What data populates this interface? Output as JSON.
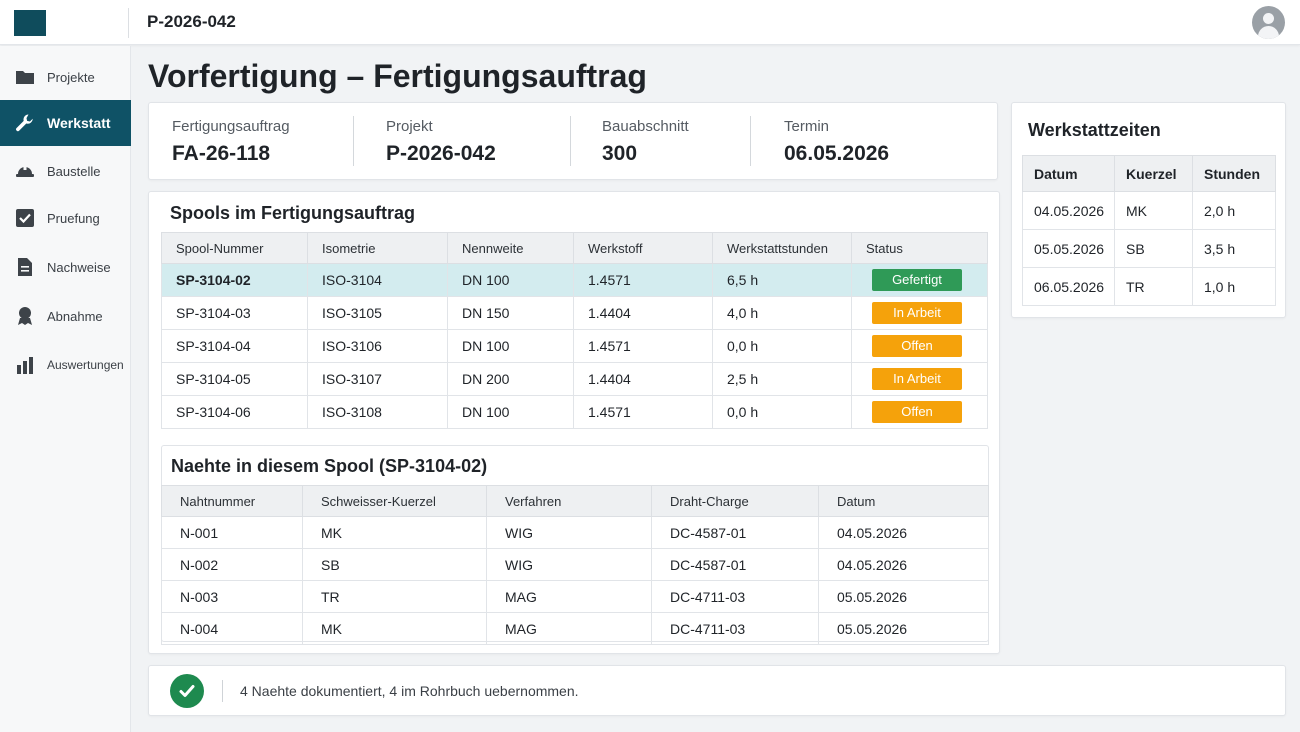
{
  "header": {
    "project_id": "P-2026-042"
  },
  "sidebar": {
    "items": [
      {
        "label": "Projekte",
        "icon": "folder-icon"
      },
      {
        "label": "Werkstatt",
        "icon": "wrench-icon",
        "active": true
      },
      {
        "label": "Baustelle",
        "icon": "hardhat-icon"
      },
      {
        "label": "Pruefung",
        "icon": "checkbox-icon"
      },
      {
        "label": "Nachweise",
        "icon": "document-icon"
      },
      {
        "label": "Abnahme",
        "icon": "award-icon"
      },
      {
        "label": "Auswertungen",
        "icon": "bar-chart-icon"
      }
    ]
  },
  "page": {
    "title": "Vorfertigung – Fertigungsauftrag"
  },
  "info": {
    "fertigungsauftrag": {
      "label": "Fertigungsauftrag",
      "value": "FA-26-118"
    },
    "projekt": {
      "label": "Projekt",
      "value": "P-2026-042"
    },
    "bauabschnitt": {
      "label": "Bauabschnitt",
      "value": "300"
    },
    "termin": {
      "label": "Termin",
      "value": "06.05.2026"
    }
  },
  "spools": {
    "title": "Spools im Fertigungsauftrag",
    "columns": [
      "Spool-Nummer",
      "Isometrie",
      "Nennweite",
      "Werkstoff",
      "Werkstattstunden",
      "Status"
    ],
    "rows": [
      {
        "nummer": "SP-3104-02",
        "isometrie": "ISO-3104",
        "nennweite": "DN 100",
        "werkstoff": "1.4571",
        "stunden": "6,5 h",
        "status": "Gefertigt"
      },
      {
        "nummer": "SP-3104-03",
        "isometrie": "ISO-3105",
        "nennweite": "DN 150",
        "werkstoff": "1.4404",
        "stunden": "4,0 h",
        "status": "In Arbeit"
      },
      {
        "nummer": "SP-3104-04",
        "isometrie": "ISO-3106",
        "nennweite": "DN 100",
        "werkstoff": "1.4571",
        "stunden": "0,0 h",
        "status": "Offen"
      },
      {
        "nummer": "SP-3104-05",
        "isometrie": "ISO-3107",
        "nennweite": "DN 200",
        "werkstoff": "1.4404",
        "stunden": "2,5 h",
        "status": "In Arbeit"
      },
      {
        "nummer": "SP-3104-06",
        "isometrie": "ISO-3108",
        "nennweite": "DN 100",
        "werkstoff": "1.4571",
        "stunden": "0,0 h",
        "status": "Offen"
      }
    ]
  },
  "seams": {
    "title": "Naehte in diesem Spool (SP-3104-02)",
    "columns": [
      "Nahtnummer",
      "Schweisser-Kuerzel",
      "Verfahren",
      "Draht-Charge",
      "Datum"
    ],
    "rows": [
      {
        "naht": "N-001",
        "kuerzel": "MK",
        "verfahren": "WIG",
        "charge": "DC-4587-01",
        "datum": "04.05.2026"
      },
      {
        "naht": "N-002",
        "kuerzel": "SB",
        "verfahren": "WIG",
        "charge": "DC-4587-01",
        "datum": "04.05.2026"
      },
      {
        "naht": "N-003",
        "kuerzel": "TR",
        "verfahren": "MAG",
        "charge": "DC-4711-03",
        "datum": "05.05.2026"
      },
      {
        "naht": "N-004",
        "kuerzel": "MK",
        "verfahren": "MAG",
        "charge": "DC-4711-03",
        "datum": "05.05.2026"
      }
    ]
  },
  "times": {
    "title": "Werkstattzeiten",
    "columns": [
      "Datum",
      "Kuerzel",
      "Stunden"
    ],
    "rows": [
      {
        "datum": "04.05.2026",
        "kuerzel": "MK",
        "stunden": "2,0 h"
      },
      {
        "datum": "05.05.2026",
        "kuerzel": "SB",
        "stunden": "3,5 h"
      },
      {
        "datum": "06.05.2026",
        "kuerzel": "TR",
        "stunden": "1,0 h"
      }
    ]
  },
  "footer": {
    "message": "4 Naehte dokumentiert, 4 im Rohrbuch uebernommen."
  },
  "colors": {
    "accent": "#0f5266",
    "status_done": "#2f9a57",
    "status_progress": "#f5a20b",
    "selected_row": "#d3ecef",
    "success": "#1e8a4f"
  }
}
